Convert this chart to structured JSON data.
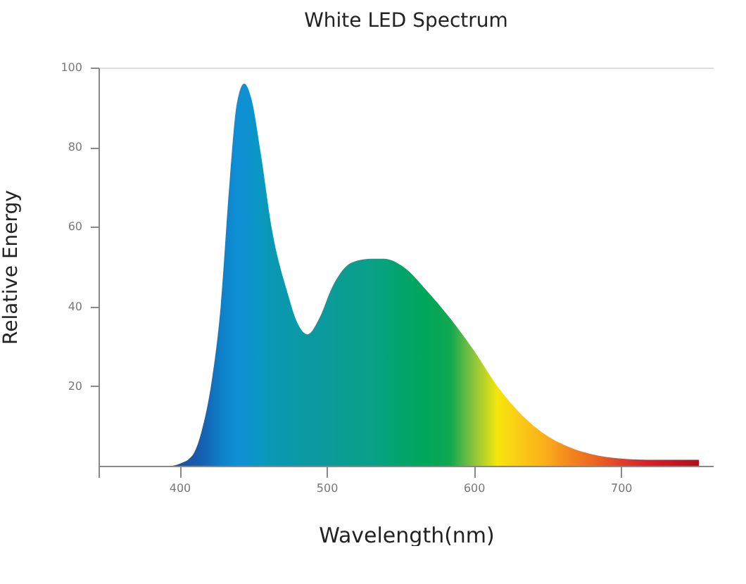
{
  "chart_data": {
    "type": "area",
    "title": "White LED Spectrum",
    "xlabel": "Wavelength(nm)",
    "ylabel": "Relative Energy",
    "xlim": [
      345,
      763
    ],
    "ylim": [
      0,
      100
    ],
    "xticks": [
      {
        "value": 345,
        "label": null
      },
      400,
      500,
      600,
      700
    ],
    "yticks": [
      20,
      40,
      60,
      80,
      100
    ],
    "grid": false,
    "series": [
      {
        "x": [
          395,
          400,
          409,
          415,
          422,
          428,
          434,
          439,
          444,
          449,
          455,
          463,
          473,
          480,
          487,
          495,
          504,
          517,
          530,
          539,
          552,
          568,
          584,
          600,
          616,
          632,
          648,
          664,
          680,
          700,
          718,
          753
        ],
        "values": [
          0,
          0.5,
          2.7,
          8.6,
          21.5,
          40,
          71,
          91,
          96,
          92,
          79,
          59,
          44,
          36,
          33,
          37,
          45,
          51,
          52,
          52,
          50,
          44,
          37,
          29,
          20,
          13,
          8,
          4.8,
          2.9,
          1.8,
          1.5,
          1.5
        ],
        "colors": [
          "#1a4fa0",
          "#1a52a4",
          "#1858aa",
          "#1560b0",
          "#1170bc",
          "#0d80c8",
          "#0e88ce",
          "#0f8fd4",
          "#0f8fd4",
          "#0c94ca",
          "#0a98c0",
          "#0a98b4",
          "#0a99ac",
          "#0a9aa8",
          "#0a9aa0",
          "#0a9aa0",
          "#0a9c96",
          "#0a9e8e",
          "#0aa08a",
          "#05a27c",
          "#02a46a",
          "#00a65a",
          "#10a750",
          "#8cc43c",
          "#f5e60a",
          "#fbc818",
          "#fbb01a",
          "#f4891e",
          "#ec6a20",
          "#e0402a",
          "#d8202a",
          "#b01018"
        ]
      }
    ]
  }
}
